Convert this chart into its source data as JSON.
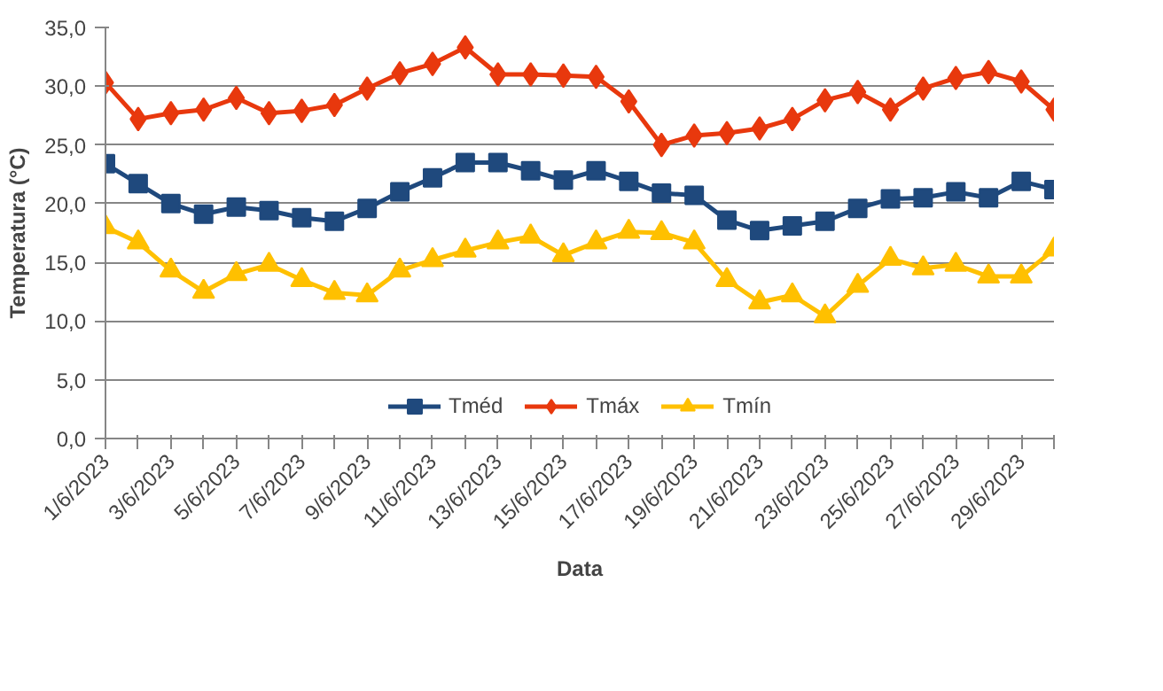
{
  "chart_data": {
    "type": "line",
    "xlabel": "Data",
    "ylabel": "Temperatura (°C)",
    "categories": [
      "1/6/2023",
      null,
      "3/6/2023",
      null,
      "5/6/2023",
      null,
      "7/6/2023",
      null,
      "9/6/2023",
      null,
      "11/6/2023",
      null,
      "13/6/2023",
      null,
      "15/6/2023",
      null,
      "17/6/2023",
      null,
      "19/6/2023",
      null,
      "21/6/2023",
      null,
      "23/6/2023",
      null,
      "25/6/2023",
      null,
      "27/6/2023",
      null,
      "29/6/2023",
      null
    ],
    "series": [
      {
        "name": "Tméd",
        "color": "#1f497d",
        "marker": "square",
        "values": [
          23.4,
          21.7,
          20.0,
          19.1,
          19.7,
          19.4,
          18.8,
          18.5,
          19.6,
          21.0,
          22.2,
          23.5,
          23.5,
          22.8,
          22.0,
          22.8,
          21.9,
          20.9,
          20.7,
          18.6,
          17.7,
          18.1,
          18.5,
          19.6,
          20.4,
          20.5,
          21.0,
          20.5,
          21.9,
          21.2
        ]
      },
      {
        "name": "Tmáx",
        "color": "#e8380d",
        "marker": "diamond",
        "values": [
          30.3,
          27.2,
          27.7,
          28.0,
          29.0,
          27.7,
          27.9,
          28.4,
          29.8,
          31.1,
          31.9,
          33.3,
          31.0,
          31.0,
          30.9,
          30.8,
          28.7,
          25.0,
          25.8,
          26.0,
          26.4,
          27.2,
          28.8,
          29.5,
          28.0,
          29.8,
          30.7,
          31.2,
          30.4,
          28.0
        ]
      },
      {
        "name": "Tmín",
        "color": "#ffc000",
        "marker": "triangle",
        "values": [
          18.0,
          16.7,
          14.3,
          12.5,
          14.0,
          14.8,
          13.5,
          12.4,
          12.2,
          14.3,
          15.2,
          16.0,
          16.7,
          17.2,
          15.6,
          16.7,
          17.6,
          17.5,
          16.7,
          13.5,
          11.6,
          12.2,
          10.4,
          13.0,
          15.3,
          14.5,
          14.8,
          13.8,
          13.8,
          16.1
        ]
      }
    ],
    "ylim": [
      0,
      35
    ],
    "yticks": [
      {
        "value": 0,
        "label": "0,0"
      },
      {
        "value": 5,
        "label": "5,0"
      },
      {
        "value": 10,
        "label": "10,0"
      },
      {
        "value": 15,
        "label": "15,0"
      },
      {
        "value": 20,
        "label": "20,0"
      },
      {
        "value": 25,
        "label": "25,0"
      },
      {
        "value": 30,
        "label": "30,0"
      },
      {
        "value": 35,
        "label": "35,0"
      }
    ],
    "grid": "y",
    "legend": "bottom",
    "line_style": "solid"
  }
}
